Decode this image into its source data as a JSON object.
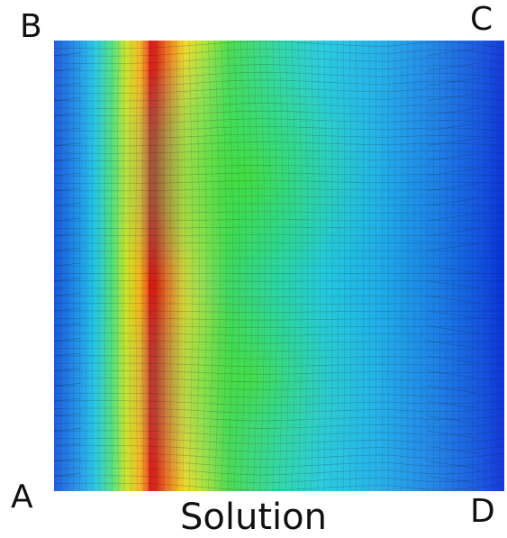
{
  "labels": {
    "top_left": "B",
    "top_right": "C",
    "bottom_left": "A",
    "bottom_right": "D",
    "caption": "Solution"
  },
  "colormap": {
    "name": "jet",
    "stops": [
      "#0a2fd6",
      "#1a7de6",
      "#21c7e8",
      "#23e07a",
      "#7fe02a",
      "#f2e51e",
      "#f29a1a",
      "#d81a10"
    ]
  },
  "field_profile_left_to_right": [
    0.18,
    0.3,
    0.45,
    0.62,
    0.82,
    0.98,
    0.8,
    0.66,
    0.6,
    0.52,
    0.42,
    0.36,
    0.32,
    0.3,
    0.26,
    0.2,
    0.15,
    0.1,
    0.05
  ],
  "mesh_color": "#1a1a1a"
}
